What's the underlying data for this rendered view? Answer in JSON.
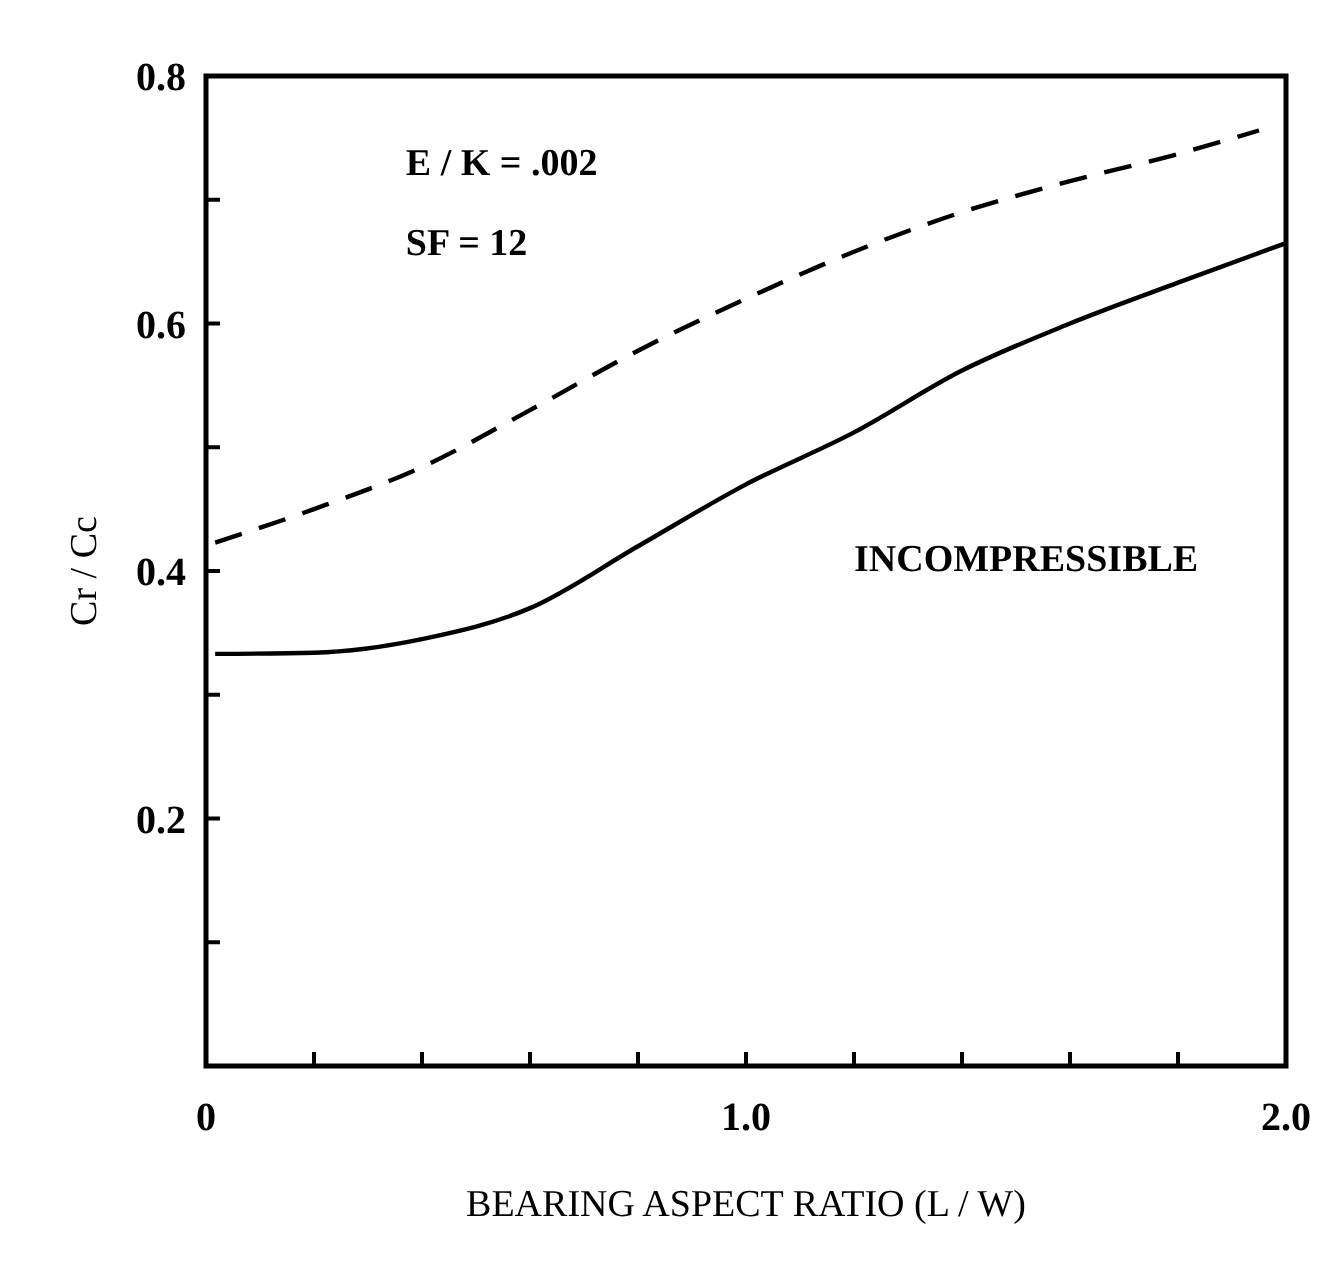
{
  "chart_data": {
    "type": "line",
    "xlabel": "BEARING ASPECT RATIO (L / W)",
    "ylabel": "Cr / Cc",
    "xlim": [
      0,
      2
    ],
    "ylim": [
      0,
      0.8
    ],
    "xticks": [
      {
        "value": 0,
        "label": "0"
      },
      {
        "value": 0.2,
        "label": null
      },
      {
        "value": 0.4,
        "label": null
      },
      {
        "value": 0.6,
        "label": null
      },
      {
        "value": 0.8,
        "label": null
      },
      {
        "value": 1,
        "label": "1.0"
      },
      {
        "value": 1.2,
        "label": null
      },
      {
        "value": 1.4,
        "label": null
      },
      {
        "value": 1.6,
        "label": null
      },
      {
        "value": 1.8,
        "label": null
      },
      {
        "value": 2,
        "label": "2.0"
      }
    ],
    "yticks": [
      {
        "value": 0.1,
        "label": null
      },
      {
        "value": 0.2,
        "label": "0.2"
      },
      {
        "value": 0.3,
        "label": null
      },
      {
        "value": 0.4,
        "label": "0.4"
      },
      {
        "value": 0.5,
        "label": null
      },
      {
        "value": 0.6,
        "label": "0.6"
      },
      {
        "value": 0.7,
        "label": null
      },
      {
        "value": 0.8,
        "label": "0.8"
      }
    ],
    "x": [
      0.017,
      0.2,
      0.4,
      0.6,
      0.8,
      1.0,
      1.2,
      1.4,
      1.6,
      1.8,
      2.0
    ],
    "series": [
      {
        "color": "#000000",
        "line_style": "dashed",
        "x": [
          0.017,
          0.2,
          0.4,
          0.6,
          0.8,
          1.0,
          1.2,
          1.4,
          1.6,
          1.8,
          1.95
        ],
        "values": [
          0.423,
          0.45,
          0.484,
          0.53,
          0.578,
          0.62,
          0.658,
          0.69,
          0.715,
          0.737,
          0.756
        ]
      },
      {
        "color": "#000000",
        "line_style": "solid",
        "values": [
          0.333,
          0.334,
          0.345,
          0.37,
          0.42,
          0.47,
          0.512,
          0.562,
          0.6,
          0.633,
          0.665
        ]
      }
    ],
    "annotations": [
      "E / K = .002",
      "SF = 12",
      "INCOMPRESSIBLE"
    ],
    "grid": false,
    "marker": "none"
  }
}
